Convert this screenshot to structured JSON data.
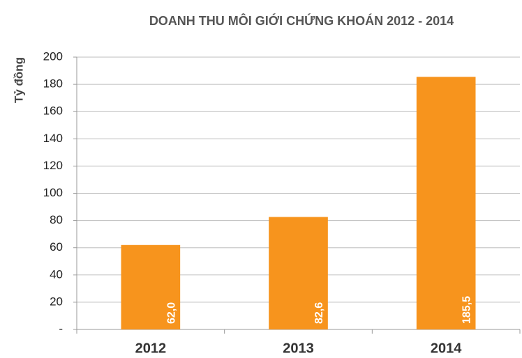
{
  "chart_data": {
    "type": "bar",
    "title": "DOANH THU MÔI GIỚI CHỨNG KHOÁN 2012 - 2014",
    "y_label": "Tỷ đồng",
    "categories": [
      "2012",
      "2013",
      "2014"
    ],
    "values": [
      62.0,
      82.6,
      185.5
    ],
    "value_labels": [
      "62,0",
      "82,6",
      "185,5"
    ],
    "color": "#f7941d",
    "ylim": [
      0,
      200
    ],
    "yticks": [
      {
        "value": 0,
        "label": "-"
      },
      20,
      40,
      60,
      80,
      100,
      120,
      140,
      160,
      180,
      200
    ],
    "grid": true
  }
}
